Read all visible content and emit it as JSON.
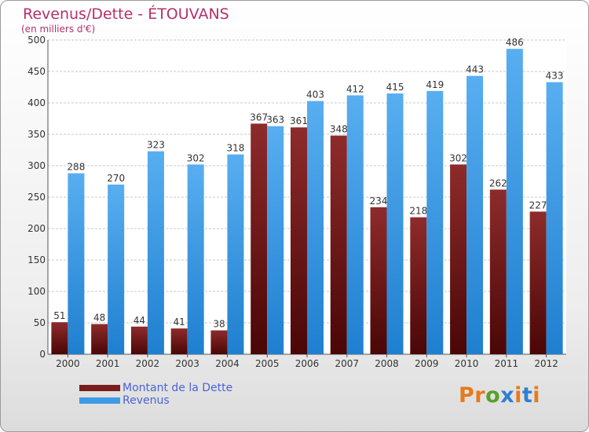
{
  "title": "Revenus/Dette - ÉTOUVANS",
  "subtitle": "(en milliers d'€)",
  "brand": "Proxiti",
  "colors": {
    "dette": "#7a1c1c",
    "revenus": "#3d9be6",
    "title": "#b5306a",
    "legend_text": "#4b63d6",
    "brand_letters": [
      "#e8791c",
      "#e8791c",
      "#5aa02c",
      "#2d7fd3",
      "#e8791c",
      "#2d7fd3",
      "#e8791c"
    ]
  },
  "chart_data": {
    "type": "bar",
    "categories": [
      "2000",
      "2001",
      "2002",
      "2003",
      "2004",
      "2005",
      "2006",
      "2007",
      "2008",
      "2009",
      "2010",
      "2011",
      "2012"
    ],
    "series": [
      {
        "name": "Montant de la Dette",
        "values": [
          51,
          48,
          44,
          41,
          38,
          367,
          361,
          348,
          234,
          218,
          302,
          262,
          227
        ]
      },
      {
        "name": "Revenus",
        "values": [
          288,
          270,
          323,
          302,
          318,
          363,
          403,
          412,
          415,
          419,
          443,
          486,
          433
        ]
      }
    ],
    "ylim": [
      0,
      500
    ],
    "yticks": [
      0,
      50,
      100,
      150,
      200,
      250,
      300,
      350,
      400,
      450,
      500
    ],
    "grid": true,
    "legend_position": "bottom-left"
  }
}
